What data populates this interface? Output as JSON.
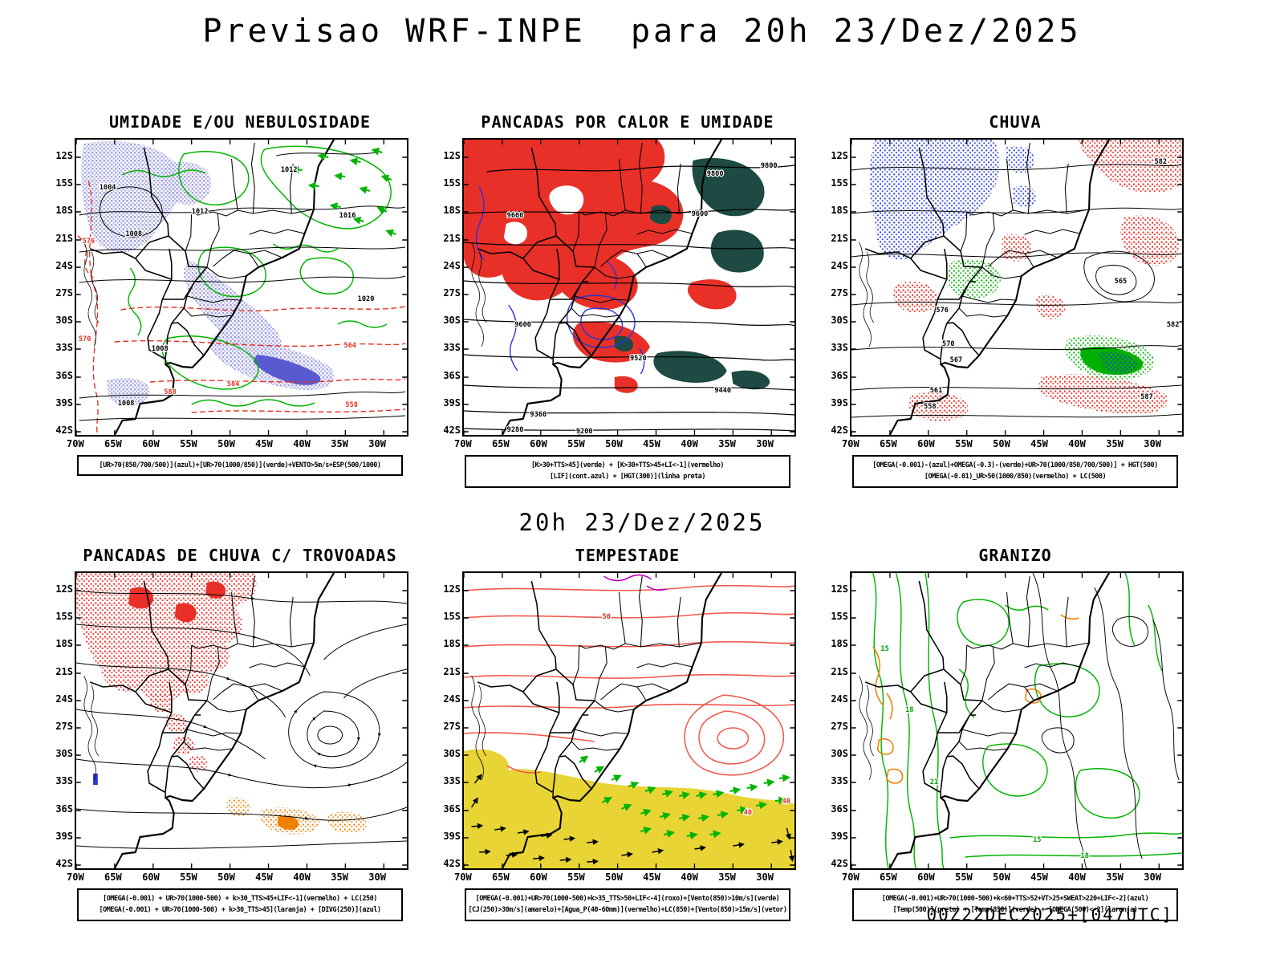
{
  "page": {
    "title": "Previsao WRF-INPE  para 20h 23/Dez/2025",
    "subtitle": "20h 23/Dez/2025",
    "footer": "00Z22DEC2025+[047UTC]"
  },
  "axes": {
    "lat": [
      "12S",
      "15S",
      "18S",
      "21S",
      "24S",
      "27S",
      "30S",
      "33S",
      "36S",
      "39S",
      "42S"
    ],
    "lon": [
      "70W",
      "65W",
      "60W",
      "55W",
      "50W",
      "45W",
      "40W",
      "35W",
      "30W"
    ]
  },
  "panels": [
    {
      "title": "UMIDADE E/OU NEBULOSIDADE",
      "legend": [
        "[UR>70(850/700/500)](azul)+[UR>70(1000/850)](verde)+VENTO>5m/s+ESP(500/1000)"
      ],
      "map_labels": [
        "1004",
        "1008",
        "1012",
        "1012",
        "1016",
        "1020",
        "1008",
        "1008",
        "576",
        "570",
        "564",
        "584",
        "558",
        "588"
      ]
    },
    {
      "title": "PANCADAS POR CALOR E UMIDADE",
      "legend": [
        "[K>30+TTS>45](verde) + [K>30+TTS>45+LI<-1](vermelho)",
        "[LIF](cont.azul) + [HGT(300)](linha preta)"
      ],
      "map_labels": [
        "9800",
        "9800",
        "9600",
        "9600",
        "9600",
        "9520",
        "9440",
        "9360",
        "9280",
        "9200"
      ]
    },
    {
      "title": "CHUVA",
      "legend": [
        "[OMEGA(-0.001)-(azul)+OMEGA(-0.3)-(verde)+UR>70(1000/850/700/500)] + HGT(500)",
        "[OMEGA(-0.01)_UR>50(1000/850)(vermelho) + LC(500)"
      ],
      "map_labels": [
        "582",
        "565",
        "582",
        "576",
        "570",
        "567",
        "561",
        "558",
        "587"
      ]
    },
    {
      "title": "PANCADAS DE CHUVA C/ TROVOADAS",
      "legend": [
        "[OMEGA(-0.001) + UR>70(1000-500) + k>30_TTS>45+LIF<-1](vermelho) + LC(250)",
        "[OMEGA(-0.001) + UR>70(1000-500) + k>30_TTS>45](laranja) + [DIVG(250)](azul)"
      ],
      "map_labels": []
    },
    {
      "title": "TEMPESTADE",
      "legend": [
        "[OMEGA(-0.001)+UR>70(1000-500)+k>35_TTS>50+LIF<-4](roxo)+[Vento(850)>10m/s](verde)",
        "[CJ(250)>30m/s](amarelo)+[Agua_P(40-60mm)](vermelho)+LC(850)+[Vento(850)>15m/s](vetor)"
      ],
      "map_labels": [
        "50",
        "40",
        "40"
      ]
    },
    {
      "title": "GRANIZO",
      "legend": [
        "[OMEGA(-0.001)+UR>70(1000-500)+k<60+TTS>52+VT>25+SWEAT>220+LIF<-2](azul)",
        "[Temp(500)](preto) + [Temp(850)](verde) + [OMEGA(500)<-2](laranja)"
      ],
      "map_labels": [
        "15",
        "18",
        "21",
        "15",
        "18"
      ]
    }
  ],
  "colors": {
    "humidity_shading_lavender": "#9c9ce0",
    "convection_red": "#e83028",
    "instability_dark_teal": "#1d4a42",
    "jet_yellow": "#e8d434",
    "wind_green": "#00b400",
    "divergence_orange": "#f08000",
    "lif_blue": "#2433dd",
    "severe_purple": "#c000c0",
    "storm_contour_salmon": "#f2594e"
  }
}
